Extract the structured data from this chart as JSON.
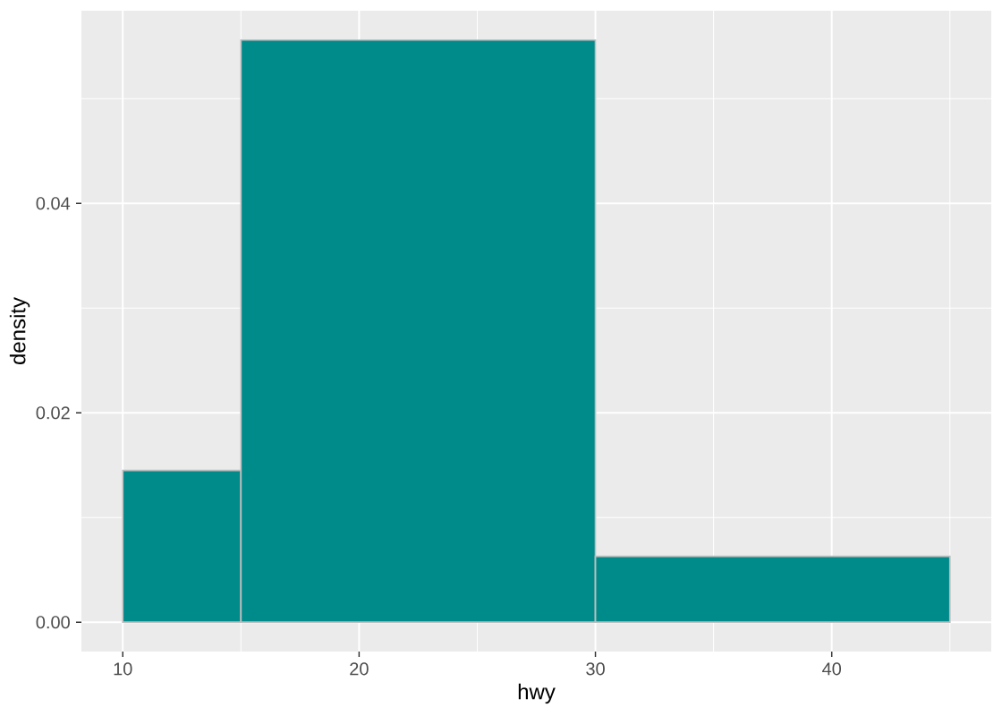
{
  "chart_data": {
    "type": "histogram",
    "xlabel": "hwy",
    "ylabel": "density",
    "bins": [
      10,
      15,
      30,
      45
    ],
    "values": [
      0.0145,
      0.0556,
      0.0063
    ],
    "color": "#008b8b",
    "xlim": [
      8.25,
      46.75
    ],
    "ylim": [
      -0.0028,
      0.0584
    ],
    "xticks": [
      10,
      20,
      30,
      40
    ],
    "yticks": [
      {
        "value": 0,
        "label": "0.00"
      },
      0.02,
      0.04
    ],
    "grid": true
  }
}
